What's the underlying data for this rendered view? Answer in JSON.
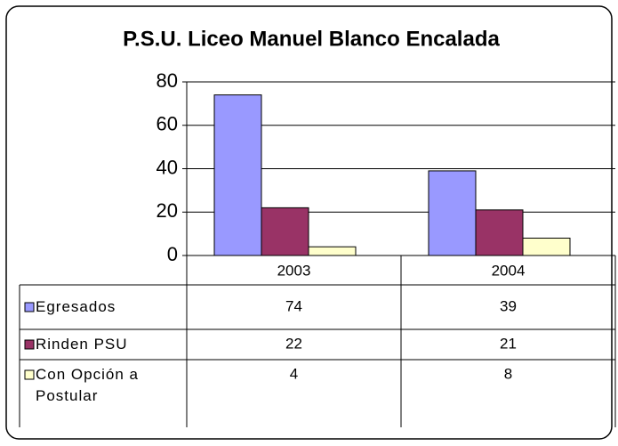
{
  "chart_data": {
    "type": "bar",
    "title": "P.S.U. Liceo Manuel Blanco Encalada",
    "categories": [
      "2003",
      "2004"
    ],
    "series": [
      {
        "name": "Egresados",
        "color": "#9999ff",
        "values": [
          74,
          39
        ]
      },
      {
        "name": "Rinden PSU",
        "color": "#993366",
        "values": [
          22,
          21
        ]
      },
      {
        "name": "Con Opción a Postular",
        "color": "#ffffcc",
        "values": [
          4,
          8
        ]
      }
    ],
    "ylim": [
      0,
      80
    ],
    "yticks": [
      0,
      20,
      40,
      60,
      80
    ],
    "grid": true,
    "data_table": true
  }
}
